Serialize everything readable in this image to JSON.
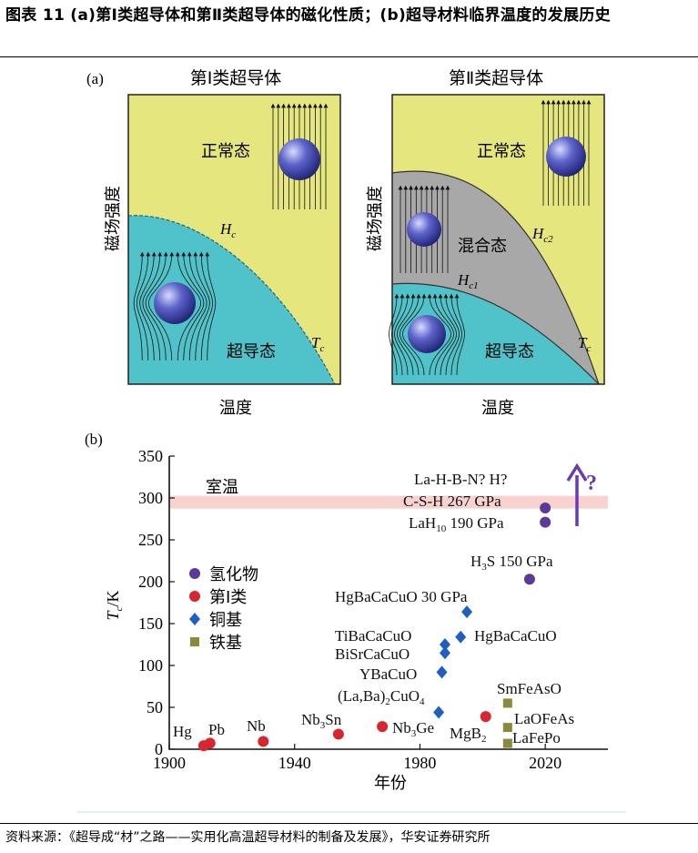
{
  "title": "图表 11 (a)第Ⅰ类超导体和第Ⅱ类超导体的磁化性质；(b)超导材料临界温度的发展历史",
  "source": "资料来源：《超导成“材”之路——实用化高温超导材料的制备及发展》，华安证券研究所",
  "colors": {
    "yellow": "#e6e67e",
    "cyan": "#4fc3c9",
    "gray": "#a8a8a8",
    "pink": "#f7d2cf"
  },
  "panel_a": {
    "label": "(a)",
    "ylabel": "磁场强度",
    "left": {
      "title": "第Ⅰ类超导体",
      "normal": "正常态",
      "hc": "H",
      "hc_sub": "c",
      "sc": "超导态",
      "tc": "T",
      "tc_sub": "c",
      "xlabel": "温度"
    },
    "right": {
      "title": "第Ⅱ类超导体",
      "normal": "正常态",
      "mixed": "混合态",
      "hc2": "H",
      "hc2_sub": "c2",
      "hc1": "H",
      "hc1_sub": "c1",
      "sc": "超导态",
      "tc": "T",
      "tc_sub": "c",
      "xlabel": "温度"
    }
  },
  "chart_data": {
    "type": "scatter",
    "label": "(b)",
    "xlabel": "年份",
    "ylabel_main": "T",
    "ylabel_sub": "c",
    "ylabel_unit": "/K",
    "xlim": [
      1900,
      2040
    ],
    "ylim": [
      0,
      350
    ],
    "xticks": [
      1900,
      1940,
      1980,
      2020
    ],
    "yticks": [
      0,
      50,
      100,
      150,
      200,
      250,
      300,
      350
    ],
    "room_temp": {
      "label": "室温",
      "value": 295
    },
    "legend": [
      {
        "name": "氢化物",
        "shape": "circle",
        "color": "#5b3a99"
      },
      {
        "name": "第Ⅰ类",
        "shape": "circle",
        "color": "#d7262e"
      },
      {
        "name": "铜基",
        "shape": "diamond",
        "color": "#1f5fbf"
      },
      {
        "name": "铁基",
        "shape": "square",
        "color": "#8a8a3c"
      }
    ],
    "series": [
      {
        "name": "氢化物",
        "shape": "circle",
        "color": "#5b3a99",
        "points": [
          {
            "x": 2015,
            "y": 203
          },
          {
            "x": 2020,
            "y": 288
          },
          {
            "x": 2020,
            "y": 271
          }
        ]
      },
      {
        "name": "第Ⅰ类",
        "shape": "circle",
        "color": "#d7262e",
        "points": [
          {
            "x": 1911,
            "y": 4.2
          },
          {
            "x": 1913,
            "y": 7.2
          },
          {
            "x": 1930,
            "y": 9.3
          },
          {
            "x": 1954,
            "y": 18
          },
          {
            "x": 1968,
            "y": 27
          },
          {
            "x": 2001,
            "y": 39
          }
        ]
      },
      {
        "name": "铜基",
        "shape": "diamond",
        "color": "#1f5fbf",
        "points": [
          {
            "x": 1986,
            "y": 44
          },
          {
            "x": 1987,
            "y": 92
          },
          {
            "x": 1988,
            "y": 115
          },
          {
            "x": 1988,
            "y": 125
          },
          {
            "x": 1993,
            "y": 134
          },
          {
            "x": 1995,
            "y": 164
          }
        ]
      },
      {
        "name": "铁基",
        "shape": "square",
        "color": "#8a8a3c",
        "points": [
          {
            "x": 2008,
            "y": 55
          },
          {
            "x": 2008,
            "y": 26
          },
          {
            "x": 2008,
            "y": 7
          }
        ]
      }
    ],
    "annotations": [
      {
        "text": "Hg"
      },
      {
        "text": "Pb"
      },
      {
        "text": "Nb"
      },
      {
        "text": "Nb",
        "sub": "3",
        "tail": "Sn"
      },
      {
        "text": "Nb",
        "sub": "3",
        "tail": "Ge"
      },
      {
        "text": "MgB",
        "sub": "2",
        "tail": ""
      },
      {
        "text": "(La,Ba)",
        "sub": "2",
        "tail": "CuO",
        "sub2": "4"
      },
      {
        "text": "YBaCuO"
      },
      {
        "text": "BiSrCaCuO"
      },
      {
        "text": "TiBaCaCuO"
      },
      {
        "text": "HgBaCaCuO"
      },
      {
        "text": "HgBaCaCuO 30 GPa"
      },
      {
        "text": "H",
        "sub": "3",
        "tail": "S 150 GPa"
      },
      {
        "text": "LaH",
        "sub": "10",
        "tail": " 190 GPa"
      },
      {
        "text": "C-S-H 267 GPa"
      },
      {
        "text": "La-H-B-N?  H?"
      },
      {
        "text": "SmFeAsO"
      },
      {
        "text": "LaOFeAs"
      },
      {
        "text": "LaFePo"
      },
      {
        "text": "?"
      }
    ]
  }
}
